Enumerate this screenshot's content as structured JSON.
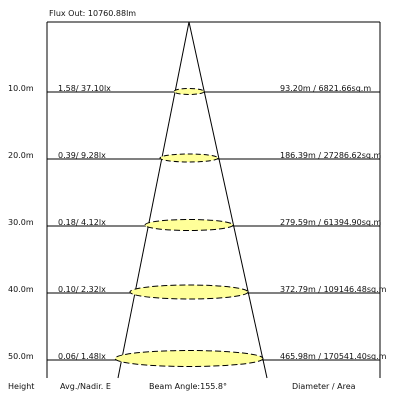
{
  "flux_out": "Flux Out: 10760.88lm",
  "footer": {
    "height": "Height",
    "avg_nadir": "Avg./Nadir. E",
    "beam_angle": "Beam Angle:155.8°",
    "diameter_area": "Diameter / Area"
  },
  "rows": [
    {
      "height": "10.0m",
      "illuminance": "1.58/ 37.10lx",
      "diameter_area": "93.20m / 6821.66sq.m"
    },
    {
      "height": "20.0m",
      "illuminance": "0.39/ 9.28lx",
      "diameter_area": "186.39m / 27286.62sq.m"
    },
    {
      "height": "30.0m",
      "illuminance": "0.18/ 4.12lx",
      "diameter_area": "279.59m / 61394.90sq.m"
    },
    {
      "height": "40.0m",
      "illuminance": "0.10/ 2.32lx",
      "diameter_area": "372.79m / 109146.48sq.m"
    },
    {
      "height": "50.0m",
      "illuminance": "0.06/ 1.48lx",
      "diameter_area": "465.98m / 170541.40sq.m"
    }
  ],
  "colors": {
    "ellipse_fill": "#ffff99",
    "line": "#000000"
  }
}
